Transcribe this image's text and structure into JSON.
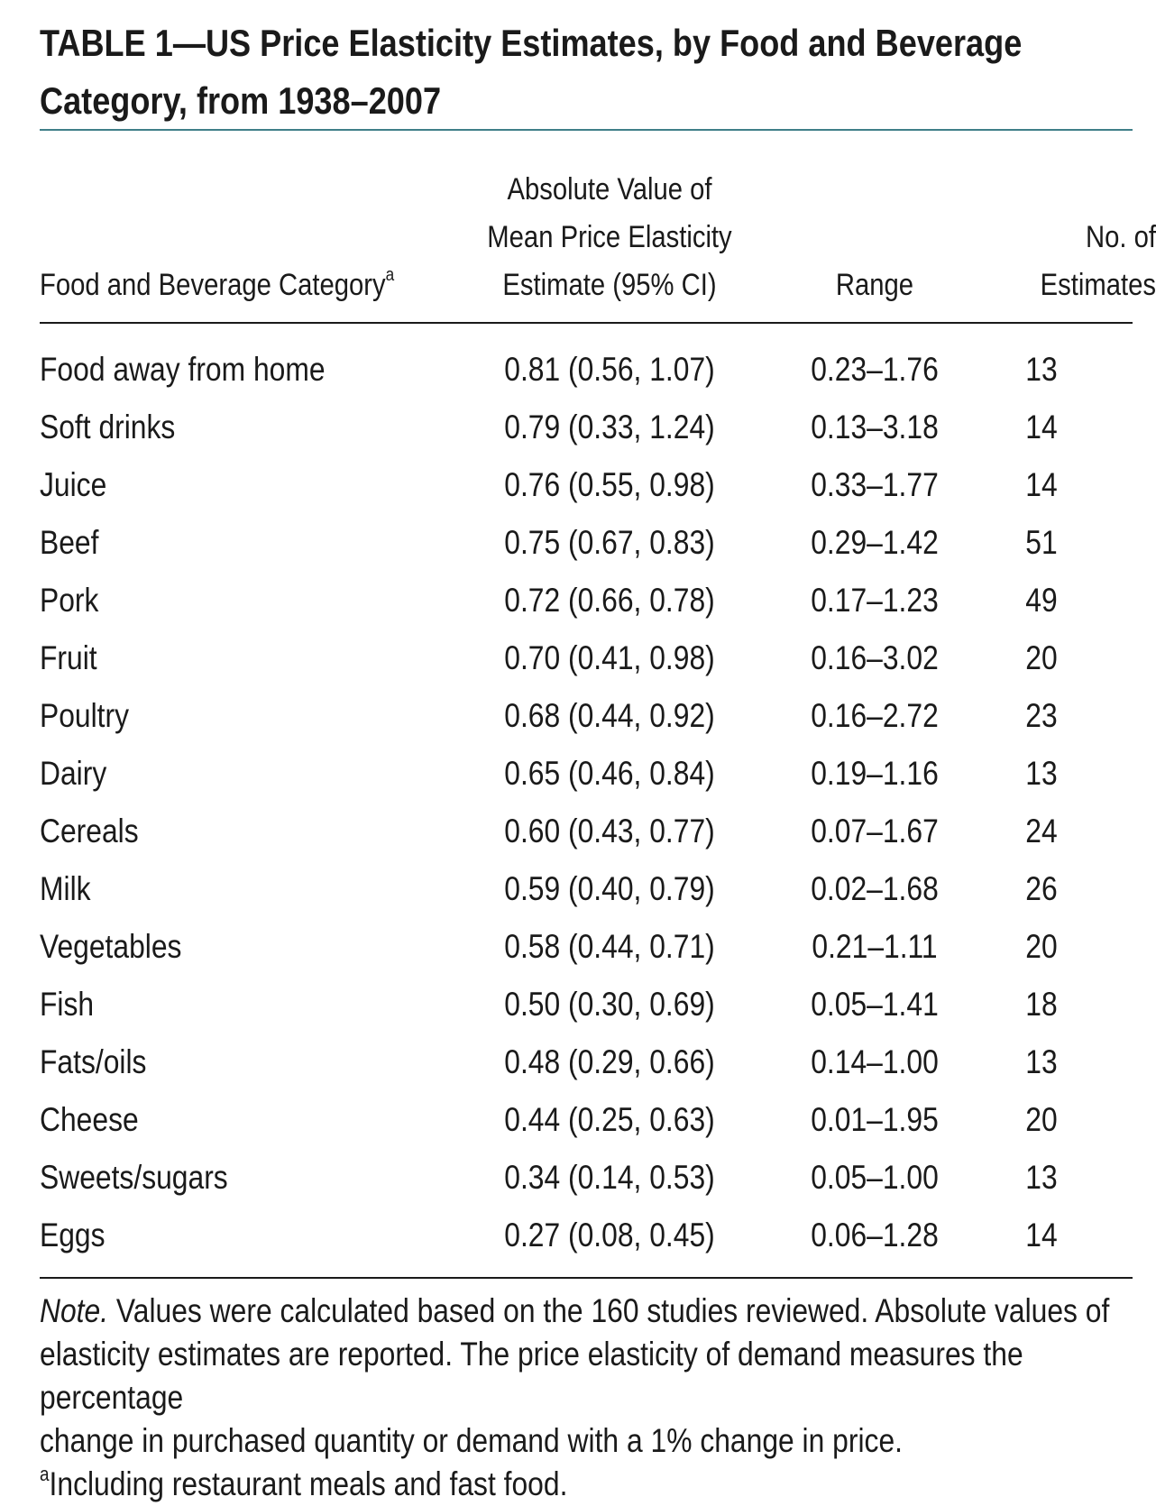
{
  "title_lines": [
    "TABLE 1—US Price Elasticity Estimates, by Food and Beverage",
    "Category, from 1938–2007"
  ],
  "columns": {
    "category": {
      "label": "Food and Beverage Category",
      "footnote_mark": "a"
    },
    "mean_lines": [
      "Absolute Value of",
      "Mean Price Elasticity",
      "Estimate (95% CI)"
    ],
    "range": "Range",
    "count_lines": [
      "No. of",
      "Estimates"
    ]
  },
  "rows": [
    {
      "category": "Food away from home",
      "mean_ci": "0.81 (0.56, 1.07)",
      "range": "0.23–1.76",
      "count": "13"
    },
    {
      "category": "Soft drinks",
      "mean_ci": "0.79 (0.33, 1.24)",
      "range": "0.13–3.18",
      "count": "14"
    },
    {
      "category": "Juice",
      "mean_ci": "0.76 (0.55, 0.98)",
      "range": "0.33–1.77",
      "count": "14"
    },
    {
      "category": "Beef",
      "mean_ci": "0.75 (0.67, 0.83)",
      "range": "0.29–1.42",
      "count": "51"
    },
    {
      "category": "Pork",
      "mean_ci": "0.72 (0.66, 0.78)",
      "range": "0.17–1.23",
      "count": "49"
    },
    {
      "category": "Fruit",
      "mean_ci": "0.70 (0.41, 0.98)",
      "range": "0.16–3.02",
      "count": "20"
    },
    {
      "category": "Poultry",
      "mean_ci": "0.68 (0.44, 0.92)",
      "range": "0.16–2.72",
      "count": "23"
    },
    {
      "category": "Dairy",
      "mean_ci": "0.65 (0.46, 0.84)",
      "range": "0.19–1.16",
      "count": "13"
    },
    {
      "category": "Cereals",
      "mean_ci": "0.60 (0.43, 0.77)",
      "range": "0.07–1.67",
      "count": "24"
    },
    {
      "category": "Milk",
      "mean_ci": "0.59 (0.40, 0.79)",
      "range": "0.02–1.68",
      "count": "26"
    },
    {
      "category": "Vegetables",
      "mean_ci": "0.58 (0.44, 0.71)",
      "range": "0.21–1.11",
      "count": "20"
    },
    {
      "category": "Fish",
      "mean_ci": "0.50 (0.30, 0.69)",
      "range": "0.05–1.41",
      "count": "18"
    },
    {
      "category": "Fats/oils",
      "mean_ci": "0.48 (0.29, 0.66)",
      "range": "0.14–1.00",
      "count": "13"
    },
    {
      "category": "Cheese",
      "mean_ci": "0.44 (0.25, 0.63)",
      "range": "0.01–1.95",
      "count": "20"
    },
    {
      "category": "Sweets/sugars",
      "mean_ci": "0.34 (0.14, 0.53)",
      "range": "0.05–1.00",
      "count": "13"
    },
    {
      "category": "Eggs",
      "mean_ci": "0.27 (0.08, 0.45)",
      "range": "0.06–1.28",
      "count": "14"
    }
  ],
  "note": {
    "label": "Note.",
    "lines": [
      " Values were calculated based on the 160 studies reviewed. Absolute values of",
      "elasticity estimates are reported. The price elasticity of demand measures the percentage",
      "change in purchased quantity or demand with a 1% change in price."
    ],
    "footnote_mark": "a",
    "footnote_text": "Including restaurant meals and fast food."
  }
}
